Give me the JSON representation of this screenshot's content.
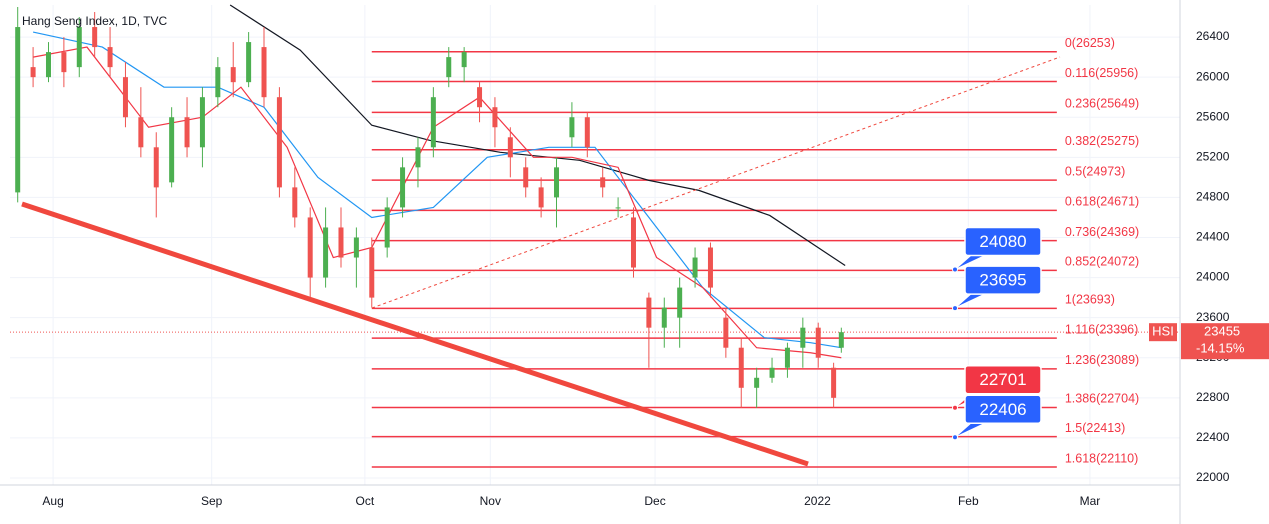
{
  "chart_data": {
    "type": "candlestick",
    "title": "Hang Seng Index, 1D, TVC",
    "symbol": "HSI",
    "last_price": 23455,
    "change_percent": -14.15,
    "change_label": "-14.15%",
    "ylim": [
      21930,
      26720
    ],
    "yticks": [
      22000,
      22400,
      22800,
      23200,
      23600,
      24000,
      24400,
      24800,
      25200,
      25600,
      26000,
      26400
    ],
    "xlim": [
      0,
      152
    ],
    "xticks": [
      {
        "value": 5.6,
        "label": "Aug"
      },
      {
        "value": 26.2,
        "label": "Sep"
      },
      {
        "value": 46.1,
        "label": "Oct"
      },
      {
        "value": 62.4,
        "label": "Nov"
      },
      {
        "value": 83.8,
        "label": "Dec"
      },
      {
        "value": 104.9,
        "label": "2022"
      },
      {
        "value": 124.5,
        "label": "Feb"
      },
      {
        "value": 140.3,
        "label": "Mar"
      }
    ],
    "grid": true,
    "up_color": "#4caf50",
    "down_color": "#ef5350",
    "candles": {
      "x": [
        1,
        3,
        5,
        7,
        9,
        11,
        13,
        15,
        17,
        19,
        21,
        23,
        25,
        27,
        29,
        31,
        33,
        35,
        37,
        39,
        41,
        43,
        45,
        47,
        49,
        51,
        53,
        55,
        57,
        59,
        61,
        63,
        65,
        67,
        69,
        71,
        73,
        75,
        77,
        79,
        81,
        83,
        85,
        87,
        89,
        91,
        93,
        95,
        97,
        99,
        101,
        103,
        105,
        107,
        108
      ],
      "open": [
        24850,
        26100,
        26000,
        26250,
        26100,
        26500,
        26300,
        26000,
        25600,
        25300,
        24950,
        25600,
        25300,
        25800,
        26100,
        25950,
        26300,
        25800,
        24900,
        24600,
        24000,
        24500,
        24200,
        24300,
        24300,
        24700,
        25100,
        25300,
        26000,
        26100,
        25900,
        25700,
        25400,
        25100,
        24900,
        24800,
        25400,
        25600,
        25000,
        24700,
        24600,
        23800,
        23500,
        23600,
        24000,
        24300,
        23600,
        23300,
        22900,
        23000,
        23100,
        23300,
        23500,
        23100,
        23300
      ],
      "high": [
        26700,
        26300,
        26350,
        26400,
        26600,
        26650,
        26500,
        26150,
        25900,
        25450,
        25700,
        25800,
        25900,
        26200,
        26350,
        26450,
        26500,
        25900,
        25100,
        24700,
        24700,
        24700,
        24500,
        24400,
        24800,
        25200,
        25400,
        25900,
        26300,
        26300,
        25950,
        25800,
        25500,
        25200,
        25000,
        25200,
        25750,
        25650,
        25100,
        24800,
        24700,
        23850,
        23800,
        24000,
        24300,
        24350,
        23700,
        23400,
        23100,
        23200,
        23350,
        23600,
        23550,
        23150,
        23500
      ],
      "low": [
        24750,
        25900,
        25950,
        25900,
        26000,
        26200,
        26000,
        25500,
        25200,
        24600,
        24900,
        25200,
        25100,
        25700,
        25800,
        25900,
        25700,
        24800,
        24500,
        23800,
        23900,
        24100,
        23900,
        23700,
        24200,
        24600,
        24900,
        25200,
        25900,
        25950,
        25550,
        25300,
        25000,
        24800,
        24600,
        24500,
        25300,
        25200,
        24800,
        24600,
        24000,
        23100,
        23300,
        23300,
        23900,
        23800,
        23200,
        22700,
        22700,
        22950,
        23000,
        23100,
        23100,
        22700,
        23250
      ],
      "close": [
        26500,
        26000,
        26250,
        26050,
        26500,
        26300,
        26100,
        25600,
        25300,
        24900,
        25600,
        25300,
        25800,
        26100,
        25950,
        26350,
        25800,
        24900,
        24600,
        24000,
        24500,
        24200,
        24400,
        23800,
        24700,
        25100,
        25300,
        25800,
        26200,
        26250,
        25700,
        25500,
        25200,
        24900,
        24700,
        25100,
        25600,
        25300,
        24900,
        24700,
        24100,
        23500,
        23700,
        23900,
        24200,
        23900,
        23300,
        22900,
        23000,
        23100,
        23300,
        23500,
        23200,
        22800,
        23455
      ]
    },
    "moving_averages": [
      {
        "color": "#131722",
        "x": [
          28.6,
          37.7,
          47,
          54.5,
          63.7,
          74,
          83,
          89.5,
          98.7,
          108.5
        ],
        "values": [
          26720,
          26270,
          25520,
          25370,
          25250,
          25170,
          24970,
          24870,
          24620,
          24120
        ]
      },
      {
        "color": "#2196f3",
        "x": [
          3,
          12,
          20,
          27,
          33,
          40,
          47,
          55,
          62,
          70,
          76,
          82,
          90,
          98,
          104,
          108
        ],
        "values": [
          26450,
          26300,
          25900,
          25900,
          25700,
          25000,
          24600,
          24700,
          25200,
          25300,
          25300,
          24700,
          23900,
          23400,
          23350,
          23300
        ]
      },
      {
        "color": "#f23645",
        "x": [
          3,
          10,
          18,
          25,
          30,
          36,
          42,
          47,
          55,
          61,
          68,
          73,
          79,
          84,
          90,
          97,
          104,
          108
        ],
        "values": [
          26200,
          26300,
          25500,
          25600,
          25900,
          25300,
          24200,
          24300,
          25500,
          25800,
          25200,
          25200,
          25100,
          24200,
          23900,
          23300,
          23250,
          23200
        ]
      }
    ],
    "fib_levels": {
      "color": "#f23645",
      "x_range": [
        47,
        136
      ],
      "values": [
        26253,
        25956,
        25649,
        25275,
        24973,
        24671,
        24369,
        24072,
        23693,
        23396,
        23089,
        22704,
        22413,
        22110
      ],
      "value_labels": [
        "0(26253)",
        "0.116(25956)",
        "0.236(25649)",
        "0.382(25275)",
        "0.5(24973)",
        "0.618(24671)",
        "0.736(24369)",
        "0.852(24072)",
        "1(23693)",
        "1.116(23396)",
        "1.236(23089)",
        "1.386(22704)",
        "1.5(22413)",
        "1.618(22110)"
      ]
    },
    "callouts": [
      {
        "value": 24080,
        "color": "#2962ff"
      },
      {
        "value": 23695,
        "color": "#2962ff"
      },
      {
        "value": 22701,
        "color": "#f23645"
      },
      {
        "value": 22406,
        "color": "#2962ff"
      }
    ]
  }
}
